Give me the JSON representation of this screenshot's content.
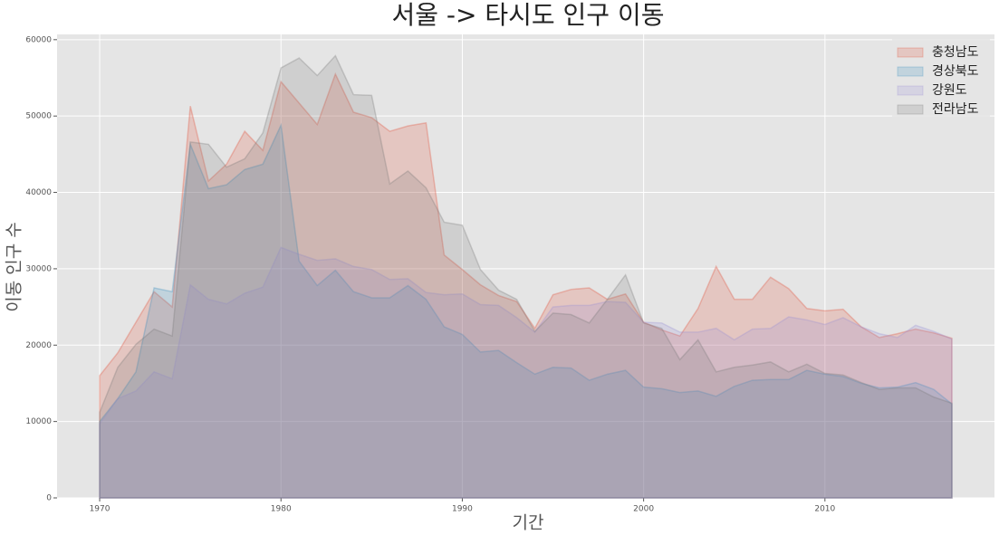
{
  "chart_data": {
    "type": "area",
    "title": "서울 -> 타시도 인구 이동",
    "x_label": "기간",
    "y_label": "이동 인구 수",
    "x": [
      1970,
      1971,
      1972,
      1973,
      1974,
      1975,
      1976,
      1977,
      1978,
      1979,
      1980,
      1981,
      1982,
      1983,
      1984,
      1985,
      1986,
      1987,
      1988,
      1989,
      1990,
      1991,
      1992,
      1993,
      1994,
      1995,
      1996,
      1997,
      1998,
      1999,
      2000,
      2001,
      2002,
      2003,
      2004,
      2005,
      2006,
      2007,
      2008,
      2009,
      2010,
      2011,
      2012,
      2013,
      2014,
      2015,
      2016,
      2017
    ],
    "series": [
      {
        "name": "충청남도",
        "color": "#E24A33",
        "values": [
          16000,
          19000,
          23000,
          27000,
          25000,
          51300,
          41500,
          43700,
          48000,
          45500,
          54500,
          51700,
          48900,
          55500,
          50500,
          49800,
          48000,
          48700,
          49100,
          31800,
          29900,
          27900,
          26500,
          25700,
          22200,
          26600,
          27300,
          27500,
          26000,
          26700,
          23000,
          22000,
          21200,
          24800,
          30300,
          26000,
          26000,
          28900,
          27400,
          24800,
          24500,
          24700,
          22400,
          21000,
          21500,
          22100,
          21600,
          20900
        ]
      },
      {
        "name": "경상북도",
        "color": "#348ABD",
        "values": [
          10000,
          13000,
          16500,
          27500,
          27000,
          46300,
          40500,
          41000,
          43000,
          43700,
          48800,
          31000,
          27800,
          29800,
          27000,
          26200,
          26200,
          27800,
          26000,
          22400,
          21400,
          19100,
          19300,
          17700,
          16200,
          17100,
          17000,
          15400,
          16200,
          16700,
          14500,
          14300,
          13800,
          14000,
          13300,
          14600,
          15400,
          15500,
          15500,
          16700,
          16200,
          15900,
          15000,
          14400,
          14500,
          15100,
          14200,
          12300
        ]
      },
      {
        "name": "강원도",
        "color": "#988ED5",
        "values": [
          9700,
          13000,
          14000,
          16500,
          15600,
          27900,
          26000,
          25400,
          26800,
          27600,
          32800,
          31900,
          31100,
          31300,
          30300,
          29900,
          28600,
          28700,
          26900,
          26600,
          26700,
          25300,
          25200,
          23600,
          21700,
          25000,
          25200,
          25200,
          25700,
          25600,
          23000,
          22900,
          21700,
          21700,
          22200,
          20700,
          22100,
          22200,
          23700,
          23300,
          22700,
          23600,
          22400,
          21500,
          21000,
          22600,
          21800,
          20800
        ]
      },
      {
        "name": "전라남도",
        "color": "#777777",
        "values": [
          11200,
          17100,
          20100,
          22100,
          21200,
          46600,
          46300,
          43300,
          44400,
          47800,
          56300,
          57600,
          55300,
          57900,
          52800,
          52700,
          41100,
          42800,
          40600,
          36100,
          35700,
          29900,
          27200,
          26000,
          21800,
          24200,
          24000,
          22900,
          26000,
          29200,
          22900,
          22200,
          18100,
          20700,
          16500,
          17100,
          17400,
          17800,
          16500,
          17500,
          16300,
          16100,
          15100,
          14200,
          14400,
          14400,
          13200,
          12400
        ]
      }
    ],
    "xlim": [
      1967.65,
      2019.35
    ],
    "ylim": [
      0,
      60690
    ],
    "xticks": [
      1970,
      1980,
      1990,
      2000,
      2010
    ],
    "yticks": [
      0,
      10000,
      20000,
      30000,
      40000,
      50000,
      60000
    ],
    "grid": true,
    "legend": "upper right"
  }
}
